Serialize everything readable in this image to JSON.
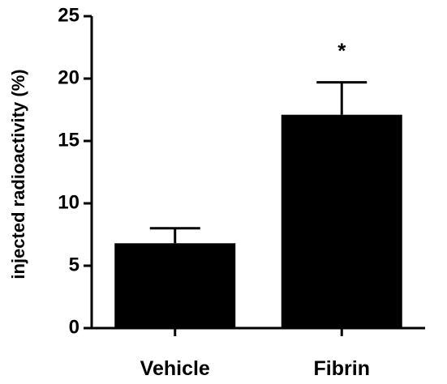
{
  "chart_data": {
    "type": "bar",
    "title": "",
    "xlabel": "",
    "ylabel": "injected radioactivity (%)",
    "categories": [
      "Vehicle",
      "Fibrin"
    ],
    "values": [
      6.8,
      17.1
    ],
    "errors": [
      1.2,
      2.6
    ],
    "ylim": [
      0,
      25
    ],
    "yticks": [
      "0",
      "5",
      "10",
      "15",
      "20",
      "25"
    ],
    "grid": false,
    "annotations": [
      {
        "category": "Fibrin",
        "text": "*"
      }
    ],
    "bar_color": "#000000"
  }
}
